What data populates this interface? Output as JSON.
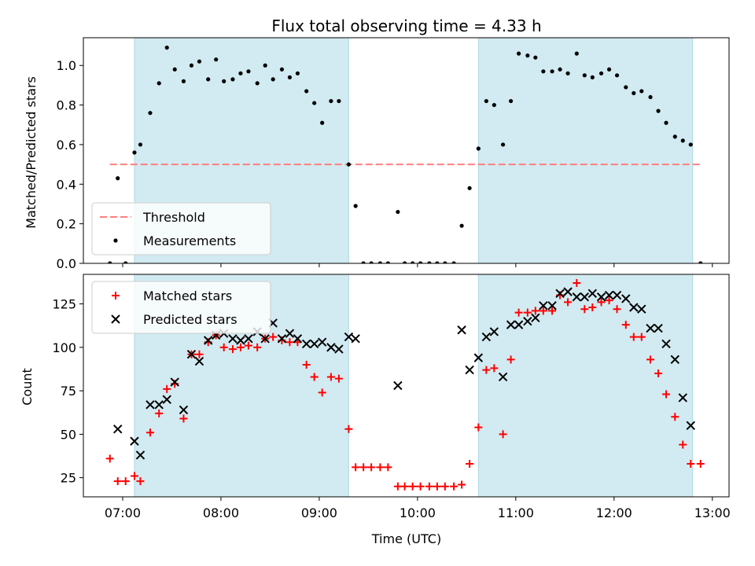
{
  "chart_data": {
    "title": "Flux total observing time = 4.33 h",
    "xlabel": "Time (UTC)",
    "x_ticks": [
      "07:00",
      "08:00",
      "09:00",
      "10:00",
      "11:00",
      "12:00",
      "13:00"
    ],
    "x_tick_values": [
      7.0,
      8.0,
      9.0,
      10.0,
      11.0,
      12.0,
      13.0
    ],
    "xlim": [
      6.6,
      13.17
    ],
    "shaded_intervals": [
      [
        7.12,
        9.3
      ],
      [
        10.62,
        12.8
      ]
    ],
    "shade_color": "#add8e6",
    "panels": [
      {
        "type": "scatter",
        "ylabel": "Matched/Predicted stars",
        "ylim": [
          0.0,
          1.14
        ],
        "y_ticks": [
          0.0,
          0.2,
          0.4,
          0.6,
          0.8,
          1.0
        ],
        "y_tick_labels": [
          "0.0",
          "0.2",
          "0.4",
          "0.6",
          "0.8",
          "1.0"
        ],
        "threshold": {
          "name": "Threshold",
          "value": 0.5,
          "x_range": [
            6.87,
            12.88
          ],
          "color": "#ff7f7f",
          "style": "dashed"
        },
        "legend": {
          "position": "lower-left",
          "entries": [
            "Threshold",
            "Measurements"
          ]
        },
        "series": [
          {
            "name": "Measurements",
            "color": "#000000",
            "marker": "dot",
            "x": [
              6.87,
              6.95,
              7.03,
              7.12,
              7.18,
              7.28,
              7.37,
              7.45,
              7.53,
              7.62,
              7.7,
              7.78,
              7.87,
              7.95,
              8.03,
              8.12,
              8.2,
              8.28,
              8.37,
              8.45,
              8.53,
              8.62,
              8.7,
              8.78,
              8.87,
              8.95,
              9.03,
              9.12,
              9.2,
              9.3,
              9.37,
              9.45,
              9.53,
              9.62,
              9.7,
              9.8,
              9.87,
              9.95,
              10.03,
              10.12,
              10.2,
              10.28,
              10.37,
              10.45,
              10.53,
              10.62,
              10.7,
              10.78,
              10.87,
              10.95,
              11.03,
              11.12,
              11.2,
              11.28,
              11.37,
              11.45,
              11.53,
              11.62,
              11.7,
              11.78,
              11.87,
              11.95,
              12.03,
              12.12,
              12.2,
              12.28,
              12.37,
              12.45,
              12.53,
              12.62,
              12.7,
              12.78,
              12.88
            ],
            "y": [
              0.0,
              0.43,
              0.0,
              0.56,
              0.6,
              0.76,
              0.91,
              1.09,
              0.98,
              0.92,
              1.0,
              1.02,
              0.93,
              1.03,
              0.92,
              0.93,
              0.96,
              0.97,
              0.91,
              1.0,
              0.93,
              0.98,
              0.94,
              0.96,
              0.87,
              0.81,
              0.71,
              0.82,
              0.82,
              0.5,
              0.29,
              0.0,
              0.0,
              0.0,
              0.0,
              0.26,
              0.0,
              0.0,
              0.0,
              0.0,
              0.0,
              0.0,
              0.0,
              0.19,
              0.38,
              0.58,
              0.82,
              0.8,
              0.6,
              0.82,
              1.06,
              1.05,
              1.04,
              0.97,
              0.97,
              0.98,
              0.96,
              1.06,
              0.95,
              0.94,
              0.96,
              0.98,
              0.95,
              0.89,
              0.86,
              0.87,
              0.84,
              0.77,
              0.71,
              0.64,
              0.62,
              0.6,
              0.0
            ]
          }
        ]
      },
      {
        "type": "scatter",
        "ylabel": "Count",
        "ylim": [
          14,
          142
        ],
        "y_ticks": [
          25,
          50,
          75,
          100,
          125
        ],
        "y_tick_labels": [
          "25",
          "50",
          "75",
          "100",
          "125"
        ],
        "legend": {
          "position": "upper-left",
          "entries": [
            "Matched stars",
            "Predicted stars"
          ]
        },
        "series": [
          {
            "name": "Matched stars",
            "color": "#ff0000",
            "marker": "plus",
            "x": [
              6.87,
              6.95,
              7.03,
              7.12,
              7.18,
              7.28,
              7.37,
              7.45,
              7.53,
              7.62,
              7.7,
              7.78,
              7.87,
              7.95,
              8.03,
              8.12,
              8.2,
              8.28,
              8.37,
              8.45,
              8.53,
              8.62,
              8.7,
              8.78,
              8.87,
              8.95,
              9.03,
              9.12,
              9.2,
              9.3,
              9.37,
              9.45,
              9.53,
              9.62,
              9.7,
              9.8,
              9.87,
              9.95,
              10.03,
              10.12,
              10.2,
              10.28,
              10.37,
              10.45,
              10.53,
              10.62,
              10.7,
              10.78,
              10.87,
              10.95,
              11.03,
              11.12,
              11.2,
              11.28,
              11.37,
              11.45,
              11.53,
              11.62,
              11.7,
              11.78,
              11.87,
              11.95,
              12.03,
              12.12,
              12.2,
              12.28,
              12.37,
              12.45,
              12.53,
              12.62,
              12.7,
              12.78,
              12.88
            ],
            "y": [
              36,
              23,
              23,
              26,
              23,
              51,
              62,
              76,
              79,
              59,
              96,
              96,
              103,
              107,
              100,
              99,
              100,
              101,
              100,
              105,
              106,
              104,
              103,
              103,
              90,
              83,
              74,
              83,
              82,
              53,
              31,
              31,
              31,
              31,
              31,
              20,
              20,
              20,
              20,
              20,
              20,
              20,
              20,
              21,
              33,
              54,
              87,
              88,
              50,
              93,
              120,
              120,
              121,
              121,
              121,
              130,
              126,
              137,
              122,
              123,
              126,
              127,
              122,
              113,
              106,
              106,
              93,
              85,
              73,
              60,
              44,
              33,
              33
            ]
          },
          {
            "name": "Predicted stars",
            "color": "#000000",
            "marker": "x",
            "x": [
              6.95,
              7.12,
              7.18,
              7.28,
              7.37,
              7.45,
              7.53,
              7.62,
              7.7,
              7.78,
              7.87,
              7.95,
              8.03,
              8.12,
              8.2,
              8.28,
              8.37,
              8.45,
              8.53,
              8.62,
              8.7,
              8.78,
              8.87,
              8.95,
              9.03,
              9.12,
              9.2,
              9.3,
              9.37,
              9.8,
              10.45,
              10.53,
              10.62,
              10.7,
              10.78,
              10.87,
              10.95,
              11.03,
              11.12,
              11.2,
              11.28,
              11.37,
              11.45,
              11.53,
              11.62,
              11.7,
              11.78,
              11.87,
              11.95,
              12.03,
              12.12,
              12.2,
              12.28,
              12.37,
              12.45,
              12.53,
              12.62,
              12.7,
              12.78
            ],
            "y": [
              53,
              46,
              38,
              67,
              67,
              70,
              80,
              64,
              96,
              92,
              104,
              107,
              108,
              105,
              104,
              105,
              109,
              105,
              114,
              105,
              108,
              105,
              102,
              102,
              103,
              100,
              99,
              106,
              105,
              78,
              110,
              87,
              94,
              106,
              109,
              83,
              113,
              113,
              115,
              117,
              124,
              124,
              131,
              132,
              129,
              129,
              131,
              129,
              130,
              130,
              128,
              123,
              122,
              111,
              111,
              102,
              93,
              71,
              55
            ]
          }
        ]
      }
    ]
  }
}
